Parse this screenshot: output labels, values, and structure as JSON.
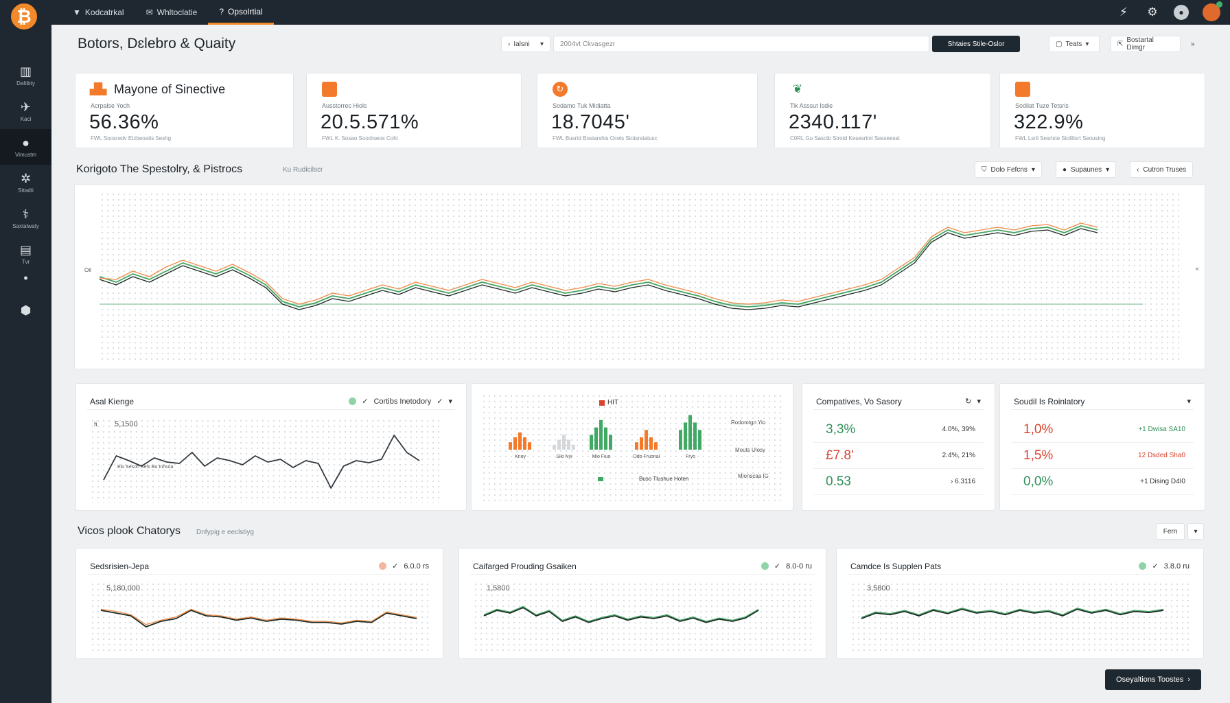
{
  "app": {
    "logo_glyph": "₿"
  },
  "topnav": [
    {
      "icon": "▼",
      "label": "Kodcatrkal"
    },
    {
      "icon": "✉",
      "label": "Whltoclatie"
    },
    {
      "icon": "?",
      "label": "Opsolrtial"
    }
  ],
  "topbar_icons": [
    "share-icon",
    "gear-icon",
    "user-icon",
    "avatar"
  ],
  "sidebar": [
    {
      "icon": "▥",
      "label": "Daltibty"
    },
    {
      "icon": "✈",
      "label": "Kaci"
    },
    {
      "icon": "●",
      "label": "Vimustm"
    },
    {
      "icon": "✲",
      "label": "Sttadti"
    },
    {
      "icon": "⚕",
      "label": "Saxtalwaty"
    },
    {
      "icon": "▤",
      "label": "Tvr"
    },
    {
      "icon": "•",
      "label": ""
    },
    {
      "icon": "⬢",
      "label": ""
    }
  ],
  "header": {
    "title": "Botors, Dɛlebro & Quaity",
    "filter_label": "Ialsni",
    "search_placeholder": "2004vt Ckvasgezr",
    "primary_button": "Shtaies Stile-Oslor",
    "team_button": "Teats",
    "export_button": "Bostartal Dimgr"
  },
  "kpis": [
    {
      "icon": "bars",
      "title": "Mayone of Sinective",
      "sub": "Acrpalse Yoch",
      "value": "56.36%",
      "foot": "FWL Soosredv Etzbeoatis Seshg"
    },
    {
      "icon": "square",
      "title": "",
      "sub": "Ausstorrec Hiols",
      "value": "20.5.571%",
      "foot": "FWL K. Sosao Soodrseos Cohl"
    },
    {
      "icon": "circle",
      "title": "",
      "sub": "Sodamo Tuk Midiatta",
      "value": "18.7045'",
      "foot": "FWL Busrtd Bostarshis Ocels Stotsrstatusc"
    },
    {
      "icon": "leaf",
      "title": "",
      "sub": "Tik Asssut Isdie",
      "value": "2340.117'",
      "foot": "C0RL Gu Sasctb Strotd Kesesrtinl Sesseesst"
    },
    {
      "icon": "square",
      "title": "",
      "sub": "Sodilat Tuze Tetsris",
      "value": "322.9%",
      "foot": "FWL Lsrtl Sesriste Stolltlsrt Seousing"
    }
  ],
  "main_section": {
    "title": "Korigoto The Spestolry, & Pistrocs",
    "subtitle": "Ku Rudicilscr",
    "controls": [
      {
        "icon": "⛉",
        "label": "Dolo Fefcns"
      },
      {
        "icon": "●",
        "label": "Supaunes"
      },
      {
        "icon": "‹",
        "label": "Cutron Truses"
      }
    ],
    "axis_left": "Oil",
    "axis_right": "×"
  },
  "chart_data": [
    {
      "type": "line",
      "title": "",
      "x": [
        0,
        1,
        2,
        3,
        4,
        5,
        6,
        7,
        8,
        9,
        10,
        11,
        12,
        13,
        14,
        15,
        16,
        17,
        18,
        19,
        20,
        21,
        22,
        23,
        24,
        25,
        26,
        27,
        28,
        29,
        30,
        31,
        32,
        33,
        34,
        35,
        36,
        37,
        38,
        39,
        40,
        41,
        42,
        43,
        44,
        45,
        46,
        47,
        48,
        49,
        50,
        51,
        52,
        53,
        54,
        55,
        56,
        57,
        58,
        59,
        60
      ],
      "series": [
        {
          "values": [
            48,
            44,
            50,
            46,
            52,
            58,
            54,
            50,
            55,
            49,
            42,
            30,
            26,
            29,
            34,
            32,
            36,
            40,
            37,
            42,
            39,
            36,
            40,
            44,
            41,
            38,
            42,
            39,
            36,
            38,
            41,
            39,
            42,
            44,
            40,
            37,
            34,
            30,
            27,
            26,
            27,
            29,
            28,
            31,
            34,
            37,
            40,
            44,
            52,
            60,
            75,
            82,
            78,
            80,
            82,
            80,
            83,
            84,
            80,
            85,
            82
          ]
        },
        {
          "values": [
            47,
            46,
            52,
            48,
            55,
            60,
            56,
            52,
            57,
            51,
            44,
            32,
            28,
            31,
            36,
            34,
            38,
            42,
            39,
            44,
            41,
            38,
            42,
            46,
            43,
            40,
            44,
            41,
            38,
            40,
            43,
            41,
            44,
            46,
            42,
            39,
            36,
            32,
            29,
            28,
            29,
            31,
            30,
            33,
            36,
            39,
            42,
            46,
            54,
            62,
            77,
            84,
            80,
            82,
            84,
            82,
            85,
            86,
            82,
            87,
            84
          ]
        },
        {
          "values": [
            46,
            42,
            48,
            44,
            50,
            56,
            52,
            48,
            53,
            47,
            40,
            28,
            24,
            27,
            32,
            30,
            34,
            38,
            35,
            40,
            37,
            34,
            38,
            42,
            39,
            36,
            40,
            37,
            34,
            36,
            39,
            37,
            40,
            42,
            38,
            35,
            32,
            28,
            25,
            24,
            25,
            27,
            26,
            29,
            32,
            35,
            38,
            42,
            50,
            58,
            73,
            80,
            76,
            78,
            80,
            78,
            81,
            82,
            78,
            83,
            80
          ]
        }
      ],
      "ylim": [
        0,
        100
      ]
    },
    {
      "type": "line",
      "title": "Asal Kienge",
      "y_tick": "5,1500",
      "series": [
        {
          "values": [
            20,
            55,
            48,
            40,
            52,
            46,
            44,
            60,
            40,
            52,
            48,
            42,
            55,
            46,
            50,
            38,
            48,
            44,
            8,
            40,
            48,
            45,
            50,
            85,
            60,
            48
          ]
        }
      ],
      "ylim": [
        0,
        100
      ]
    },
    {
      "type": "bar",
      "title": "HIT",
      "categories": [
        "Knoy",
        "Siki Nyi",
        "Mio Fiuo",
        "Ddo Fruonal",
        "Fryo"
      ],
      "series": [
        {
          "values": [
            3,
            5,
            7,
            5,
            3
          ]
        },
        {
          "values": [
            2,
            4,
            6,
            4,
            2
          ]
        },
        {
          "values": [
            6,
            9,
            12,
            9,
            6
          ]
        },
        {
          "values": [
            3,
            5,
            8,
            5,
            3
          ]
        },
        {
          "values": [
            8,
            11,
            14,
            11,
            8
          ]
        }
      ],
      "colors": [
        "#f27a2a",
        "#d4d8db",
        "#42a964",
        "#f27a2a",
        "#42a964"
      ],
      "legend": "Buso Tlushue Hoten"
    },
    {
      "type": "line",
      "title": "Sedsrisien-Jepa",
      "y_tick": "5,180,000",
      "series": [
        {
          "values": [
            60,
            55,
            50,
            30,
            40,
            45,
            60,
            50,
            48,
            42,
            46,
            40,
            44,
            42,
            38,
            38,
            35,
            40,
            38,
            55,
            50,
            45
          ]
        },
        {
          "values": [
            62,
            58,
            52,
            34,
            42,
            48,
            62,
            52,
            50,
            44,
            48,
            42,
            46,
            44,
            40,
            40,
            37,
            42,
            40,
            57,
            52,
            47
          ]
        }
      ],
      "ylim": [
        0,
        100
      ]
    },
    {
      "type": "line",
      "title": "Caifarged Prouding Gsaiken",
      "y_tick": "1,5800",
      "series": [
        {
          "values": [
            50,
            60,
            55,
            65,
            50,
            58,
            40,
            48,
            38,
            45,
            50,
            42,
            48,
            45,
            50,
            40,
            46,
            38,
            44,
            40,
            46,
            60
          ]
        },
        {
          "values": [
            52,
            62,
            57,
            67,
            52,
            60,
            42,
            50,
            40,
            47,
            52,
            44,
            50,
            47,
            52,
            42,
            48,
            40,
            46,
            42,
            48,
            62
          ]
        }
      ],
      "ylim": [
        0,
        100
      ]
    },
    {
      "type": "line",
      "title": "Camdce Is Supplen Pats",
      "y_tick": "3,5800",
      "series": [
        {
          "values": [
            45,
            55,
            52,
            58,
            50,
            60,
            54,
            62,
            55,
            58,
            52,
            60,
            55,
            58,
            50,
            62,
            55,
            60,
            52,
            58,
            56,
            60
          ]
        },
        {
          "values": [
            47,
            57,
            54,
            60,
            52,
            62,
            56,
            64,
            57,
            60,
            54,
            62,
            57,
            60,
            52,
            64,
            57,
            62,
            54,
            60,
            58,
            62
          ]
        }
      ],
      "ylim": [
        0,
        100
      ]
    }
  ],
  "widgets": {
    "asset": {
      "title": "Asal Kienge",
      "control": "Cortibs Inetodory",
      "tick_label": "fi",
      "mini_label": "Elo Sesoh Sets Bo Inhsoa"
    },
    "bars": {
      "labels_right": [
        "Rodomtgn Yio",
        "Mouts Ulosy",
        "Mionscaa IG"
      ]
    },
    "companies": {
      "title": "Compatives, Vo Sasory",
      "rows": [
        {
          "value": "3,3%",
          "right": "4.0%, 39%",
          "color": "#2f8f57"
        },
        {
          "value": "£7.8'",
          "right": "2.4%, 21%",
          "color": "#d9432f"
        },
        {
          "value": "0.53",
          "right": "› 6.3116",
          "color": "#2f8f57"
        }
      ]
    },
    "social": {
      "title": "Soudil Is Roinlatory",
      "rows": [
        {
          "value": "1,0%",
          "right": "+1 Dwisa SA10",
          "color": "#d9432f",
          "rcolor": "#2f8f57"
        },
        {
          "value": "1,5%",
          "right": "12 Dsded Sha0",
          "color": "#d9432f",
          "rcolor": "#d9432f"
        },
        {
          "value": "0,0%",
          "right": "+1 Dising D4I0",
          "color": "#2f8f57",
          "rcolor": "#333333"
        }
      ]
    }
  },
  "lower_section": {
    "title": "Vicos plook Chatorys",
    "subtitle": "Dnfypig e eeclstiyg",
    "button": "Fern",
    "cards": [
      {
        "title": "Sedsrisien-Jepa",
        "control": "6.0.0 rs"
      },
      {
        "title": "Caifarged Prouding Gsaiken",
        "control": "8.0-0 ru"
      },
      {
        "title": "Camdce Is Supplen Pats",
        "control": "3.8.0 ru"
      }
    ]
  },
  "fab": {
    "label": "Oseyaltions Toostes"
  }
}
